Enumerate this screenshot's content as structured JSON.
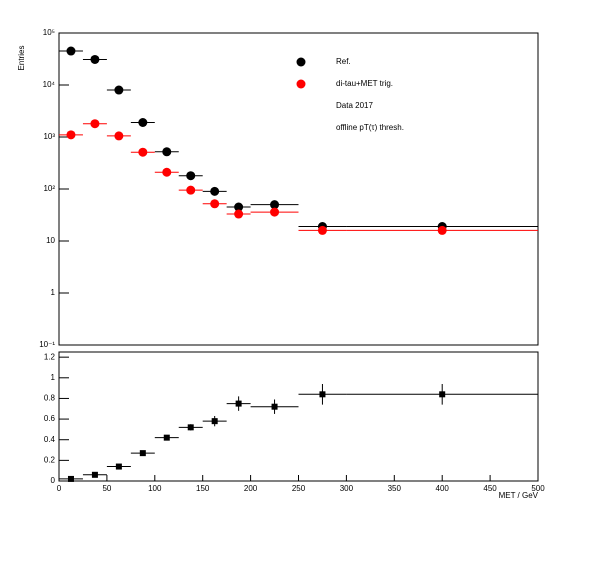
{
  "chart_data": [
    {
      "type": "scatter",
      "ylabel": "Entries",
      "log_y": true,
      "bins": [
        0,
        25,
        50,
        75,
        100,
        125,
        150,
        175,
        200,
        250,
        300,
        500
      ],
      "xlim": [
        0,
        500
      ],
      "ylim": [
        0.1,
        100000
      ],
      "yticks": [
        {
          "value": 100000,
          "label": "10⁵"
        },
        {
          "value": 10000,
          "label": "10⁴"
        },
        {
          "value": 1000,
          "label": "10³"
        },
        {
          "value": 100,
          "label": "10²"
        },
        10,
        1,
        {
          "value": 0.1,
          "label": "10⁻¹"
        }
      ],
      "marker": "circle",
      "series": [
        {
          "name": "Ref.",
          "color": "#000000",
          "values": [
            45000,
            31000,
            8000,
            1900,
            520,
            180,
            90,
            45,
            50,
            19,
            19
          ]
        },
        {
          "name": "di-tau+MET trig.",
          "color": "#ff0000",
          "values": [
            1100,
            1800,
            1050,
            510,
            210,
            95,
            52,
            33,
            36,
            16,
            16
          ]
        }
      ],
      "legend_notes": [
        "Data 2017",
        "offline pT(τ) thresh."
      ]
    },
    {
      "type": "scatter",
      "xlabel": "MET / GeV",
      "bins": [
        0,
        25,
        50,
        75,
        100,
        125,
        150,
        175,
        200,
        250,
        300,
        500
      ],
      "xlim": [
        0,
        500
      ],
      "ylim": [
        0,
        1.25
      ],
      "xticks": [
        0,
        50,
        100,
        150,
        200,
        250,
        300,
        350,
        400,
        450,
        500
      ],
      "yticks": [
        0,
        0.2,
        0.4,
        0.6,
        0.8,
        1,
        1.2
      ],
      "marker": "square",
      "series": [
        {
          "color": "#000000",
          "values": [
            0.02,
            0.06,
            0.14,
            0.27,
            0.42,
            0.52,
            0.58,
            0.75,
            0.72,
            0.84,
            0.84
          ],
          "errors": [
            0.01,
            0.01,
            0.01,
            0.02,
            0.02,
            0.03,
            0.05,
            0.07,
            0.07,
            0.1,
            0.1
          ]
        }
      ]
    }
  ]
}
